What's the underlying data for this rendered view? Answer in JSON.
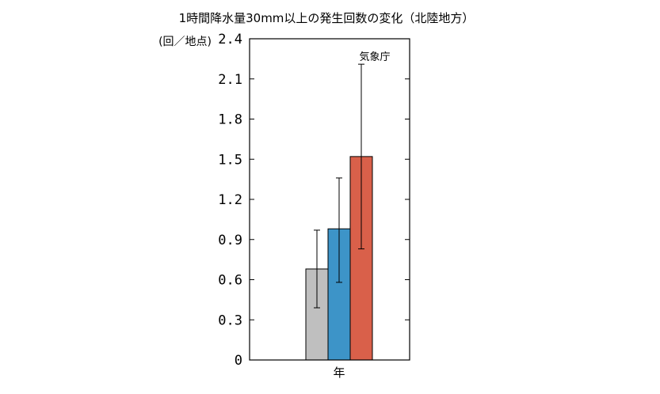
{
  "chart_data": {
    "type": "bar",
    "title": "1時間降水量30mm以上の発生回数の変化（北陸地方）",
    "ylabel": "(回／地点)",
    "xlabel": "年",
    "credit": "気象庁",
    "ylim": [
      0,
      2.4
    ],
    "yticks": [
      "0",
      "0.3",
      "0.6",
      "0.9",
      "1.2",
      "1.5",
      "1.8",
      "2.1",
      "2.4"
    ],
    "grid": false,
    "series": [
      {
        "value": 0.68,
        "error_low": 0.39,
        "error_high": 0.97,
        "color": "#bfbfbf"
      },
      {
        "value": 0.98,
        "error_low": 0.58,
        "error_high": 1.36,
        "color": "#3d94c8"
      },
      {
        "value": 1.52,
        "error_low": 0.83,
        "error_high": 2.21,
        "color": "#d9604a"
      }
    ]
  }
}
